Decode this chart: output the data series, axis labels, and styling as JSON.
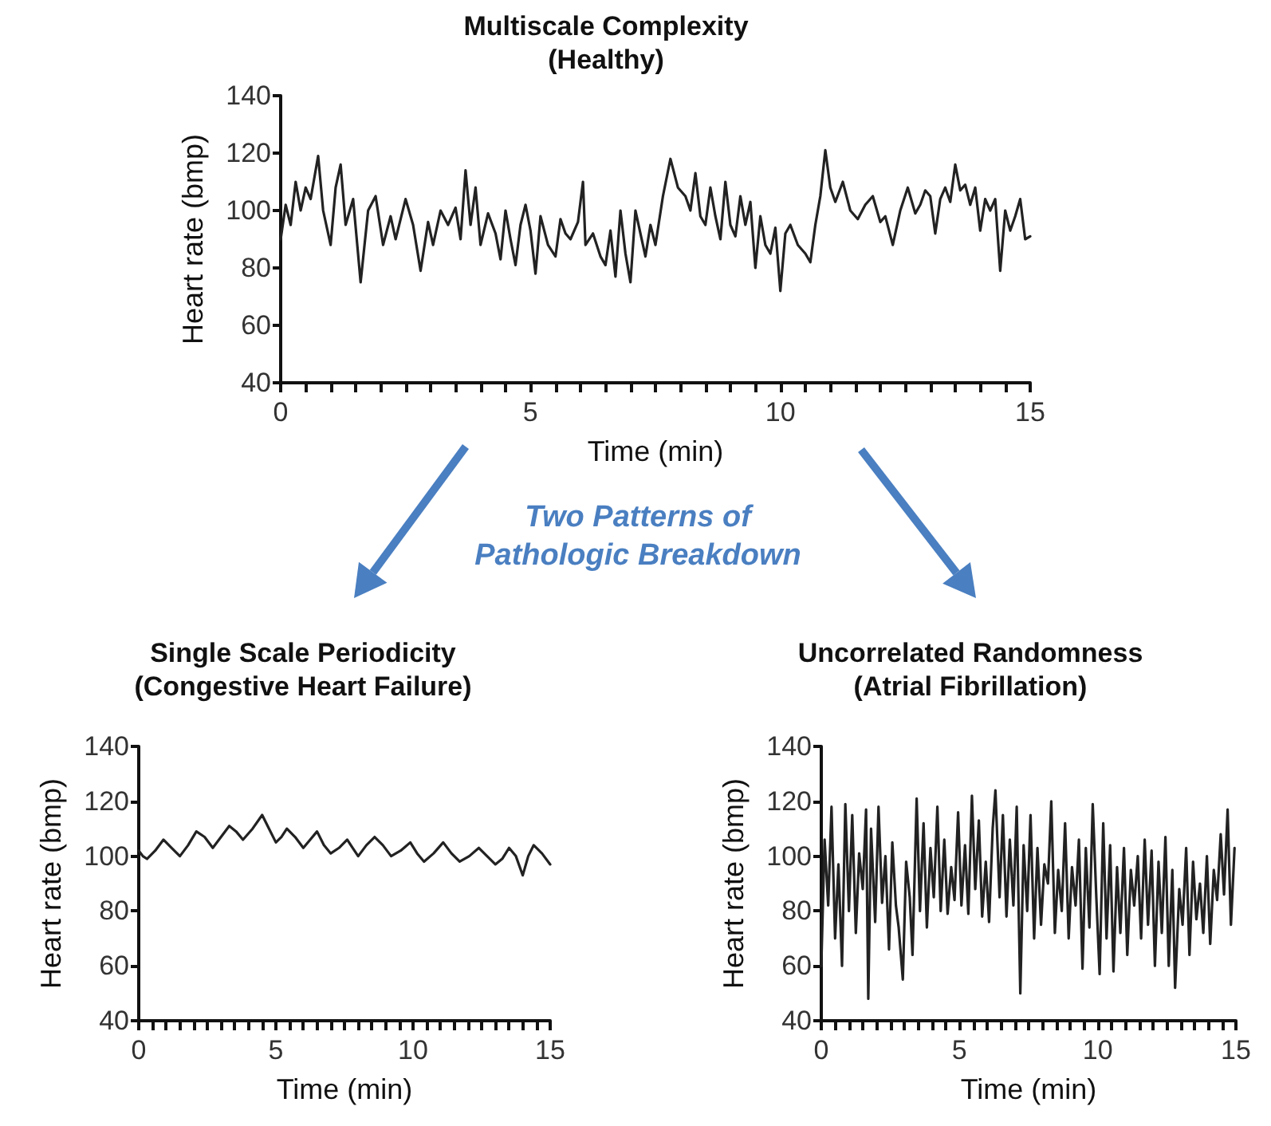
{
  "chart_data": [
    {
      "type": "line",
      "title": "Multiscale Complexity",
      "subtitle": "(Healthy)",
      "xlabel": "Time (min)",
      "ylabel": "Heart rate (bmp)",
      "xlim": [
        0,
        15
      ],
      "ylim": [
        40,
        140
      ],
      "yticks": [
        40,
        60,
        80,
        100,
        120,
        140
      ],
      "xticks": [
        0,
        {
          "value": 0.5,
          "label": null
        },
        {
          "value": 1,
          "label": null
        },
        {
          "value": 1.5,
          "label": null
        },
        {
          "value": 2,
          "label": null
        },
        {
          "value": 2.5,
          "label": null
        },
        {
          "value": 3,
          "label": null
        },
        {
          "value": 3.5,
          "label": null
        },
        {
          "value": 4,
          "label": null
        },
        {
          "value": 4.5,
          "label": null
        },
        5,
        {
          "value": 5.5,
          "label": null
        },
        {
          "value": 6,
          "label": null
        },
        {
          "value": 6.5,
          "label": null
        },
        {
          "value": 7,
          "label": null
        },
        {
          "value": 7.5,
          "label": null
        },
        {
          "value": 8,
          "label": null
        },
        {
          "value": 8.5,
          "label": null
        },
        {
          "value": 9,
          "label": null
        },
        {
          "value": 9.5,
          "label": null
        },
        10,
        {
          "value": 10.5,
          "label": null
        },
        {
          "value": 11,
          "label": null
        },
        {
          "value": 11.5,
          "label": null
        },
        {
          "value": 12,
          "label": null
        },
        {
          "value": 12.5,
          "label": null
        },
        {
          "value": 13,
          "label": null
        },
        {
          "value": 13.5,
          "label": null
        },
        {
          "value": 14,
          "label": null
        },
        {
          "value": 14.5,
          "label": null
        },
        15
      ],
      "grid": false,
      "marker": "none",
      "line_style": "solid",
      "annotations": [
        "Two Patterns of\nPathologic Breakdown"
      ],
      "series": [
        {
          "color": "#222222",
          "x": [
            0,
            0.1,
            0.2,
            0.3,
            0.4,
            0.5,
            0.6,
            0.75,
            0.85,
            1.0,
            1.1,
            1.2,
            1.3,
            1.45,
            1.6,
            1.75,
            1.9,
            2.05,
            2.2,
            2.3,
            2.5,
            2.65,
            2.8,
            2.95,
            3.05,
            3.2,
            3.35,
            3.5,
            3.6,
            3.7,
            3.8,
            3.9,
            4.0,
            4.15,
            4.3,
            4.4,
            4.5,
            4.6,
            4.7,
            4.8,
            4.9,
            5.0,
            5.1,
            5.2,
            5.35,
            5.5,
            5.6,
            5.7,
            5.8,
            5.95,
            6.05,
            6.1,
            6.25,
            6.4,
            6.5,
            6.6,
            6.7,
            6.8,
            6.9,
            7.0,
            7.1,
            7.2,
            7.3,
            7.4,
            7.5,
            7.65,
            7.8,
            7.95,
            8.1,
            8.2,
            8.3,
            8.4,
            8.5,
            8.6,
            8.7,
            8.8,
            8.9,
            9.0,
            9.1,
            9.2,
            9.3,
            9.4,
            9.5,
            9.6,
            9.7,
            9.8,
            9.9,
            10.0,
            10.1,
            10.2,
            10.35,
            10.5,
            10.6,
            10.7,
            10.8,
            10.9,
            11.0,
            11.1,
            11.25,
            11.4,
            11.55,
            11.7,
            11.85,
            12.0,
            12.1,
            12.25,
            12.4,
            12.55,
            12.7,
            12.8,
            12.9,
            13.0,
            13.1,
            13.2,
            13.3,
            13.4,
            13.5,
            13.6,
            13.7,
            13.8,
            13.9,
            14.0,
            14.1,
            14.2,
            14.3,
            14.4,
            14.5,
            14.6,
            14.7,
            14.8,
            14.9,
            15.0
          ],
          "values": [
            90,
            102,
            95,
            110,
            100,
            108,
            104,
            119,
            100,
            88,
            108,
            116,
            95,
            104,
            75,
            100,
            105,
            88,
            98,
            90,
            104,
            95,
            79,
            96,
            88,
            100,
            95,
            101,
            90,
            114,
            95,
            108,
            88,
            99,
            92,
            83,
            100,
            90,
            81,
            95,
            102,
            93,
            78,
            98,
            88,
            84,
            97,
            92,
            90,
            96,
            110,
            88,
            92,
            84,
            81,
            93,
            77,
            100,
            85,
            75,
            100,
            92,
            84,
            95,
            88,
            105,
            118,
            108,
            105,
            100,
            113,
            98,
            95,
            108,
            98,
            90,
            110,
            95,
            91,
            105,
            95,
            103,
            80,
            98,
            88,
            85,
            94,
            72,
            92,
            95,
            88,
            85,
            82,
            95,
            105,
            121,
            108,
            103,
            110,
            100,
            97,
            102,
            105,
            96,
            98,
            88,
            100,
            108,
            99,
            102,
            107,
            105,
            92,
            104,
            108,
            103,
            116,
            107,
            109,
            102,
            108,
            93,
            104,
            100,
            104,
            79,
            100,
            93,
            98,
            104,
            90,
            91
          ]
        }
      ]
    },
    {
      "type": "line",
      "title": "Single Scale Periodicity",
      "subtitle": "(Congestive Heart Failure)",
      "xlabel": "Time (min)",
      "ylabel": "Heart rate (bmp)",
      "xlim": [
        0,
        15
      ],
      "ylim": [
        40,
        140
      ],
      "yticks": [
        40,
        60,
        80,
        100,
        120,
        140
      ],
      "xticks": [
        0,
        {
          "value": 0.5,
          "label": null
        },
        {
          "value": 1,
          "label": null
        },
        {
          "value": 1.5,
          "label": null
        },
        {
          "value": 2,
          "label": null
        },
        {
          "value": 2.5,
          "label": null
        },
        {
          "value": 3,
          "label": null
        },
        {
          "value": 3.5,
          "label": null
        },
        {
          "value": 4,
          "label": null
        },
        {
          "value": 4.5,
          "label": null
        },
        5,
        {
          "value": 5.5,
          "label": null
        },
        {
          "value": 6,
          "label": null
        },
        {
          "value": 6.5,
          "label": null
        },
        {
          "value": 7,
          "label": null
        },
        {
          "value": 7.5,
          "label": null
        },
        {
          "value": 8,
          "label": null
        },
        {
          "value": 8.5,
          "label": null
        },
        {
          "value": 9,
          "label": null
        },
        {
          "value": 9.5,
          "label": null
        },
        10,
        {
          "value": 10.5,
          "label": null
        },
        {
          "value": 11,
          "label": null
        },
        {
          "value": 11.5,
          "label": null
        },
        {
          "value": 12,
          "label": null
        },
        {
          "value": 12.5,
          "label": null
        },
        {
          "value": 13,
          "label": null
        },
        {
          "value": 13.5,
          "label": null
        },
        {
          "value": 14,
          "label": null
        },
        {
          "value": 14.5,
          "label": null
        },
        15
      ],
      "grid": false,
      "marker": "none",
      "line_style": "solid",
      "series": [
        {
          "color": "#222222",
          "x": [
            0,
            0.15,
            0.3,
            0.6,
            0.9,
            1.2,
            1.5,
            1.8,
            2.1,
            2.4,
            2.7,
            3.0,
            3.3,
            3.55,
            3.8,
            4.15,
            4.5,
            4.75,
            5.0,
            5.2,
            5.4,
            5.7,
            6.0,
            6.25,
            6.5,
            6.75,
            7.0,
            7.3,
            7.6,
            7.8,
            8.0,
            8.3,
            8.6,
            8.9,
            9.2,
            9.55,
            9.9,
            10.15,
            10.4,
            10.75,
            11.1,
            11.4,
            11.7,
            12.05,
            12.4,
            12.7,
            13.0,
            13.25,
            13.5,
            13.75,
            14.0,
            14.2,
            14.4,
            14.7,
            15.0
          ],
          "values": [
            102,
            100,
            99,
            102,
            106,
            103,
            100,
            104,
            109,
            107,
            103,
            107,
            111,
            109,
            106,
            110,
            115,
            110,
            105,
            107,
            110,
            107,
            103,
            106,
            109,
            104,
            101,
            103,
            106,
            103,
            100,
            104,
            107,
            104,
            100,
            102,
            105,
            101,
            98,
            101,
            105,
            101,
            98,
            100,
            103,
            100,
            97,
            99,
            103,
            100,
            93,
            100,
            104,
            101,
            97
          ]
        }
      ]
    },
    {
      "type": "line",
      "title": "Uncorrelated Randomness",
      "subtitle": "(Atrial Fibrillation)",
      "xlabel": "Time (min)",
      "ylabel": "Heart rate (bmp)",
      "xlim": [
        0,
        15
      ],
      "ylim": [
        40,
        140
      ],
      "yticks": [
        40,
        60,
        80,
        100,
        120,
        140
      ],
      "xticks": [
        0,
        {
          "value": 0.5,
          "label": null
        },
        {
          "value": 1,
          "label": null
        },
        {
          "value": 1.5,
          "label": null
        },
        {
          "value": 2,
          "label": null
        },
        {
          "value": 2.5,
          "label": null
        },
        {
          "value": 3,
          "label": null
        },
        {
          "value": 3.5,
          "label": null
        },
        {
          "value": 4,
          "label": null
        },
        {
          "value": 4.5,
          "label": null
        },
        5,
        {
          "value": 5.5,
          "label": null
        },
        {
          "value": 6,
          "label": null
        },
        {
          "value": 6.5,
          "label": null
        },
        {
          "value": 7,
          "label": null
        },
        {
          "value": 7.5,
          "label": null
        },
        {
          "value": 8,
          "label": null
        },
        {
          "value": 8.5,
          "label": null
        },
        {
          "value": 9,
          "label": null
        },
        {
          "value": 9.5,
          "label": null
        },
        10,
        {
          "value": 10.5,
          "label": null
        },
        {
          "value": 11,
          "label": null
        },
        {
          "value": 11.5,
          "label": null
        },
        {
          "value": 12,
          "label": null
        },
        {
          "value": 12.5,
          "label": null
        },
        {
          "value": 13,
          "label": null
        },
        {
          "value": 13.5,
          "label": null
        },
        {
          "value": 14,
          "label": null
        },
        {
          "value": 14.5,
          "label": null
        },
        15
      ],
      "grid": false,
      "marker": "none",
      "line_style": "solid",
      "series": [
        {
          "color": "#222222",
          "x": [
            0,
            0.12,
            0.25,
            0.37,
            0.5,
            0.62,
            0.75,
            0.87,
            1.0,
            1.12,
            1.25,
            1.37,
            1.5,
            1.62,
            1.7,
            1.8,
            1.95,
            2.07,
            2.2,
            2.32,
            2.45,
            2.57,
            2.7,
            2.8,
            2.95,
            3.07,
            3.2,
            3.3,
            3.45,
            3.57,
            3.7,
            3.82,
            3.95,
            4.07,
            4.2,
            4.32,
            4.45,
            4.57,
            4.7,
            4.82,
            4.95,
            5.07,
            5.2,
            5.32,
            5.45,
            5.57,
            5.7,
            5.82,
            5.95,
            6.07,
            6.2,
            6.3,
            6.45,
            6.57,
            6.7,
            6.82,
            6.95,
            7.07,
            7.2,
            7.32,
            7.45,
            7.57,
            7.7,
            7.82,
            7.95,
            8.07,
            8.2,
            8.32,
            8.45,
            8.57,
            8.7,
            8.82,
            8.95,
            9.07,
            9.2,
            9.32,
            9.45,
            9.57,
            9.7,
            9.82,
            9.95,
            10.07,
            10.2,
            10.32,
            10.45,
            10.57,
            10.7,
            10.82,
            10.95,
            11.07,
            11.2,
            11.32,
            11.45,
            11.57,
            11.7,
            11.82,
            11.95,
            12.07,
            12.2,
            12.32,
            12.45,
            12.57,
            12.7,
            12.8,
            12.95,
            13.07,
            13.2,
            13.32,
            13.45,
            13.57,
            13.7,
            13.82,
            13.95,
            14.07,
            14.2,
            14.32,
            14.45,
            14.57,
            14.7,
            14.82,
            14.95
          ],
          "values": [
            60,
            106,
            82,
            118,
            70,
            97,
            60,
            119,
            80,
            115,
            72,
            101,
            88,
            117,
            48,
            110,
            76,
            118,
            83,
            100,
            66,
            105,
            82,
            74,
            55,
            98,
            85,
            64,
            121,
            80,
            112,
            74,
            103,
            85,
            118,
            80,
            106,
            79,
            96,
            84,
            116,
            82,
            104,
            79,
            122,
            88,
            113,
            78,
            98,
            76,
            110,
            124,
            85,
            115,
            78,
            106,
            82,
            118,
            50,
            104,
            80,
            115,
            70,
            103,
            75,
            97,
            90,
            120,
            72,
            95,
            80,
            112,
            70,
            96,
            82,
            106,
            59,
            103,
            74,
            119,
            85,
            57,
            112,
            70,
            104,
            58,
            96,
            72,
            103,
            64,
            95,
            82,
            100,
            70,
            106,
            75,
            102,
            60,
            98,
            72,
            107,
            60,
            95,
            52,
            88,
            75,
            103,
            64,
            98,
            77,
            90,
            72,
            100,
            68,
            95,
            84,
            108,
            86,
            117,
            75,
            103
          ]
        }
      ]
    }
  ]
}
